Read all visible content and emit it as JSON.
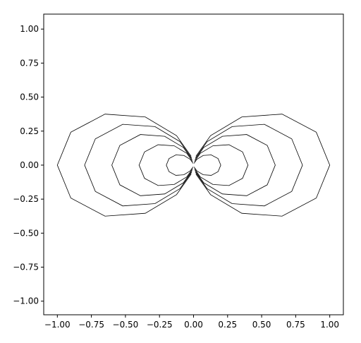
{
  "chart_data": {
    "type": "line",
    "xlim": [
      -1.1,
      1.1
    ],
    "ylim": [
      -1.1,
      1.11
    ],
    "xticks": [
      {
        "value": -1,
        "label": "−1.00"
      },
      {
        "value": -0.75,
        "label": "−0.75"
      },
      {
        "value": -0.5,
        "label": "−0.50"
      },
      {
        "value": -0.25,
        "label": "−0.25"
      },
      {
        "value": 0,
        "label": "0.00"
      },
      {
        "value": 0.25,
        "label": "0.25"
      },
      {
        "value": 0.5,
        "label": "0.50"
      },
      {
        "value": 0.75,
        "label": "0.75"
      },
      {
        "value": 1,
        "label": "1.00"
      }
    ],
    "yticks": [
      {
        "value": -1,
        "label": "−1.00"
      },
      {
        "value": -0.75,
        "label": "−0.75"
      },
      {
        "value": -0.5,
        "label": "−0.50"
      },
      {
        "value": -0.25,
        "label": "−0.25"
      },
      {
        "value": 0,
        "label": "0.00"
      },
      {
        "value": 0.25,
        "label": "0.25"
      },
      {
        "value": 0.5,
        "label": "0.50"
      },
      {
        "value": 0.75,
        "label": "0.75"
      },
      {
        "value": 1,
        "label": "1.00"
      }
    ],
    "grid": false,
    "series": [
      {
        "color": "#000000",
        "x": [
          0.003,
          0.025,
          0.071,
          0.13,
          0.18,
          0.2,
          0.18,
          0.13,
          0.071,
          0.025,
          0.003
        ],
        "y": [
          -0.013,
          -0.043,
          -0.071,
          -0.075,
          -0.048,
          0,
          0.048,
          0.075,
          0.071,
          0.043,
          0.013
        ]
      },
      {
        "color": "#000000",
        "x": [
          0.007,
          0.05,
          0.142,
          0.26,
          0.36,
          0.4,
          0.36,
          0.26,
          0.142,
          0.05,
          0.007
        ],
        "y": [
          -0.026,
          -0.087,
          -0.142,
          -0.15,
          -0.097,
          0,
          0.097,
          0.15,
          0.142,
          0.087,
          0.026
        ]
      },
      {
        "color": "#000000",
        "x": [
          0.01,
          0.075,
          0.212,
          0.39,
          0.541,
          0.6,
          0.541,
          0.39,
          0.212,
          0.075,
          0.01
        ],
        "y": [
          -0.039,
          -0.13,
          -0.212,
          -0.225,
          -0.145,
          0,
          0.145,
          0.225,
          0.212,
          0.13,
          0.039
        ]
      },
      {
        "color": "#000000",
        "x": [
          0.014,
          0.1,
          0.283,
          0.52,
          0.721,
          0.8,
          0.721,
          0.52,
          0.283,
          0.1,
          0.014
        ],
        "y": [
          -0.052,
          -0.173,
          -0.283,
          -0.3,
          -0.193,
          0,
          0.193,
          0.3,
          0.283,
          0.173,
          0.052
        ]
      },
      {
        "color": "#000000",
        "x": [
          0.017,
          0.125,
          0.354,
          0.65,
          0.901,
          1,
          0.901,
          0.65,
          0.354,
          0.125,
          0.017
        ],
        "y": [
          -0.065,
          -0.217,
          -0.354,
          -0.375,
          -0.242,
          0,
          0.242,
          0.375,
          0.354,
          0.217,
          0.065
        ]
      },
      {
        "color": "#000000",
        "x": [
          -0.003,
          -0.025,
          -0.071,
          -0.13,
          -0.18,
          -0.2,
          -0.18,
          -0.13,
          -0.071,
          -0.025,
          -0.003
        ],
        "y": [
          -0.013,
          -0.043,
          -0.071,
          -0.075,
          -0.048,
          0,
          0.048,
          0.075,
          0.071,
          0.043,
          0.013
        ]
      },
      {
        "color": "#000000",
        "x": [
          -0.007,
          -0.05,
          -0.142,
          -0.26,
          -0.36,
          -0.4,
          -0.36,
          -0.26,
          -0.142,
          -0.05,
          -0.007
        ],
        "y": [
          -0.026,
          -0.087,
          -0.142,
          -0.15,
          -0.097,
          0,
          0.097,
          0.15,
          0.142,
          0.087,
          0.026
        ]
      },
      {
        "color": "#000000",
        "x": [
          -0.01,
          -0.075,
          -0.212,
          -0.39,
          -0.541,
          -0.6,
          -0.541,
          -0.39,
          -0.212,
          -0.075,
          -0.01
        ],
        "y": [
          -0.039,
          -0.13,
          -0.212,
          -0.225,
          -0.145,
          0,
          0.145,
          0.225,
          0.212,
          0.13,
          0.039
        ]
      },
      {
        "color": "#000000",
        "x": [
          -0.014,
          -0.1,
          -0.283,
          -0.52,
          -0.721,
          -0.8,
          -0.721,
          -0.52,
          -0.283,
          -0.1,
          -0.014
        ],
        "y": [
          -0.052,
          -0.173,
          -0.283,
          -0.3,
          -0.193,
          0,
          0.193,
          0.3,
          0.283,
          0.173,
          0.052
        ]
      },
      {
        "color": "#000000",
        "x": [
          -0.017,
          -0.125,
          -0.354,
          -0.65,
          -0.901,
          -1,
          -0.901,
          -0.65,
          -0.354,
          -0.125,
          -0.017
        ],
        "y": [
          -0.065,
          -0.217,
          -0.354,
          -0.375,
          -0.242,
          0,
          0.242,
          0.375,
          0.354,
          0.217,
          0.065
        ]
      }
    ]
  }
}
